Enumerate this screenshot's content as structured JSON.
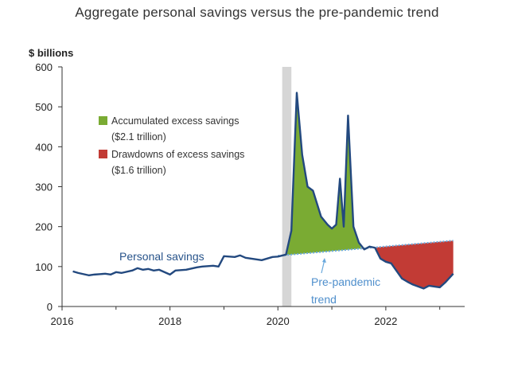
{
  "chart_data": {
    "type": "area",
    "title": "Aggregate personal savings versus the pre-pandemic trend",
    "ylabel": "$ billions",
    "xlabel": "",
    "xlim": [
      2016,
      2023.3
    ],
    "ylim": [
      0,
      600
    ],
    "x_ticks": [
      "2016",
      "2018",
      "2020",
      "2022"
    ],
    "y_ticks": [
      "0",
      "100",
      "200",
      "300",
      "400",
      "500",
      "600"
    ],
    "shaded_period": [
      2020.08,
      2020.25
    ],
    "series": [
      {
        "name": "Personal savings",
        "x": [
          2016.2,
          2016.3,
          2016.5,
          2016.6,
          2016.8,
          2016.9,
          2017.0,
          2017.1,
          2017.3,
          2017.4,
          2017.5,
          2017.6,
          2017.7,
          2017.8,
          2018.0,
          2018.1,
          2018.3,
          2018.4,
          2018.5,
          2018.6,
          2018.8,
          2018.9,
          2019.0,
          2019.2,
          2019.3,
          2019.4,
          2019.6,
          2019.7,
          2019.8,
          2019.9,
          2020.0,
          2020.15,
          2020.25,
          2020.35,
          2020.45,
          2020.55,
          2020.65,
          2020.8,
          2020.92,
          2021.0,
          2021.08,
          2021.15,
          2021.22,
          2021.3,
          2021.4,
          2021.5,
          2021.6,
          2021.7,
          2021.8,
          2021.9,
          2022.0,
          2022.1,
          2022.3,
          2022.4,
          2022.5,
          2022.6,
          2022.7,
          2022.8,
          2023.0,
          2023.1,
          2023.25
        ],
        "values": [
          88,
          84,
          78,
          80,
          82,
          80,
          86,
          84,
          90,
          96,
          92,
          94,
          90,
          92,
          80,
          90,
          92,
          95,
          98,
          100,
          102,
          100,
          126,
          124,
          128,
          122,
          118,
          116,
          120,
          124,
          125,
          130,
          190,
          535,
          380,
          300,
          290,
          225,
          205,
          195,
          205,
          320,
          200,
          478,
          200,
          160,
          143,
          150,
          147,
          120,
          112,
          108,
          70,
          62,
          55,
          50,
          45,
          52,
          48,
          60,
          82
        ]
      },
      {
        "name": "Pre-pandemic trend",
        "x": [
          2020.0,
          2023.25
        ],
        "values": [
          127,
          165
        ]
      }
    ],
    "legend": [
      {
        "label": "Accumulated excess savings",
        "sublabel": "($2.1 trillion)",
        "color": "#7aab33"
      },
      {
        "label": "Drawdowns of excess savings",
        "sublabel": "($1.6 trillion)",
        "color": "#c23b35"
      }
    ],
    "annotations": {
      "personal_savings": "Personal savings",
      "trend_line1": "Pre-pandemic",
      "trend_line2": "trend"
    },
    "colors": {
      "savings_line": "#23497f",
      "trend_line": "#6aa9dd",
      "excess_fill": "#7aab33",
      "drawdown_fill": "#c23b35",
      "shade": "#d6d6d6"
    }
  }
}
